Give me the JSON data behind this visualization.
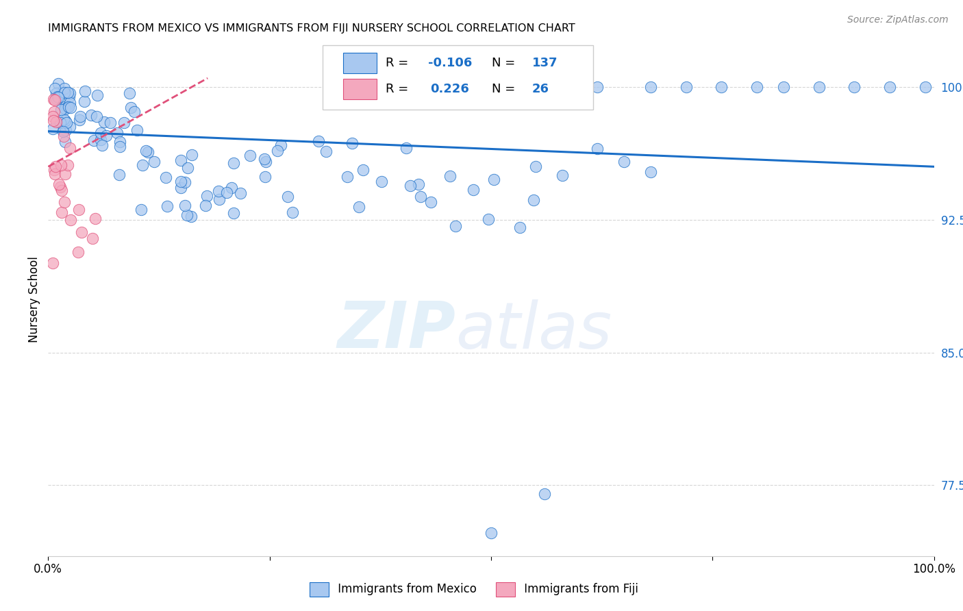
{
  "title": "IMMIGRANTS FROM MEXICO VS IMMIGRANTS FROM FIJI NURSERY SCHOOL CORRELATION CHART",
  "source": "Source: ZipAtlas.com",
  "ylabel": "Nursery School",
  "xlim": [
    0,
    1.0
  ],
  "ylim": [
    0.735,
    1.025
  ],
  "xticks": [
    0.0,
    0.25,
    0.5,
    0.75,
    1.0
  ],
  "xticklabels": [
    "0.0%",
    "",
    "",
    "",
    "100.0%"
  ],
  "ytick_positions": [
    0.775,
    0.85,
    0.925,
    1.0
  ],
  "ytick_labels": [
    "77.5%",
    "85.0%",
    "92.5%",
    "100.0%"
  ],
  "legend_R_mexico": "-0.106",
  "legend_N_mexico": "137",
  "legend_R_fiji": "0.226",
  "legend_N_fiji": "26",
  "color_mexico": "#a8c8f0",
  "color_fiji": "#f4a8be",
  "color_trendline_mexico": "#1a6ec7",
  "color_trendline_fiji": "#e0507a",
  "mexico_trendline_start_y": 0.975,
  "mexico_trendline_end_y": 0.955,
  "fiji_trendline_start_x": 0.0,
  "fiji_trendline_start_y": 0.955,
  "fiji_trendline_end_x": 0.18,
  "fiji_trendline_end_y": 1.005
}
